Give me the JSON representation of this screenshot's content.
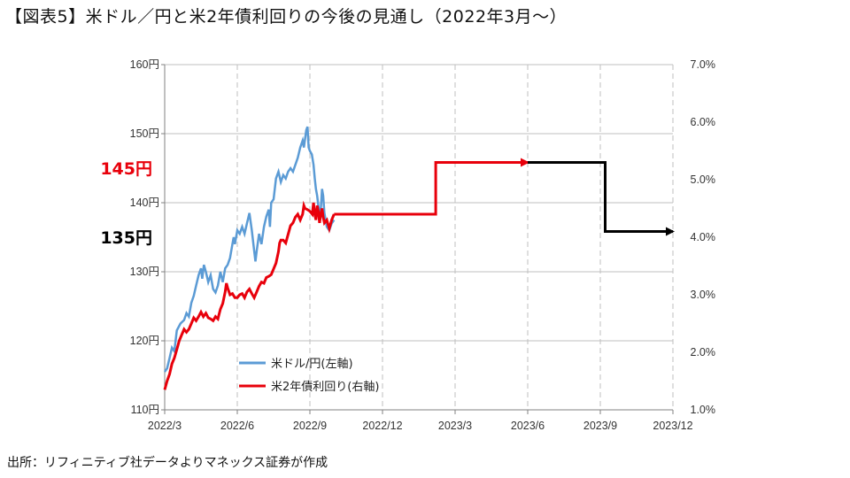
{
  "title": "【図表5】米ドル／円と米2年債利回りの今後の見通し（2022年3月～）",
  "source": "出所：リフィニティブ社データよりマネックス証券が作成",
  "colors": {
    "usdjpy": "#5b9bd5",
    "yield": "#e8000b",
    "forecast_late": "#000000",
    "grid": "#bfbfbf",
    "callout_high": "#e8000b",
    "callout_low": "#000000"
  },
  "chart_data": {
    "type": "line",
    "title": "",
    "xlabel": "",
    "x_ticks": [
      "2022/3",
      "2022/6",
      "2022/9",
      "2022/12",
      "2023/3",
      "2023/6",
      "2023/9",
      "2023/12"
    ],
    "y_left": {
      "label": "",
      "min": 110,
      "max": 160,
      "step": 10,
      "unit": "円",
      "ticks": [
        "110円",
        "120円",
        "130円",
        "140円",
        "150円",
        "160円"
      ]
    },
    "y_right": {
      "label": "",
      "min": 1.0,
      "max": 7.0,
      "step": 1.0,
      "unit": "%",
      "ticks": [
        "1.0%",
        "2.0%",
        "3.0%",
        "4.0%",
        "5.0%",
        "6.0%",
        "7.0%"
      ]
    },
    "grid": {
      "vertical": "dashed",
      "horizontal": "solid"
    },
    "legend": {
      "position": "bottom-left",
      "entries": [
        {
          "label": "米ドル/円(左軸)",
          "series": "usdjpy"
        },
        {
          "label": "米2年債利回り(右軸)",
          "series": "yield"
        }
      ]
    },
    "series": [
      {
        "name": "米ドル/円(左軸)",
        "key": "usdjpy",
        "axis": "left",
        "x_unit": "month index (0 = 2022/3)",
        "points": [
          [
            0.0,
            115.5
          ],
          [
            0.1,
            116.0
          ],
          [
            0.2,
            117.5
          ],
          [
            0.3,
            119.0
          ],
          [
            0.4,
            118.5
          ],
          [
            0.5,
            121.5
          ],
          [
            0.65,
            122.5
          ],
          [
            0.8,
            123.0
          ],
          [
            0.9,
            124.0
          ],
          [
            1.0,
            123.5
          ],
          [
            1.1,
            125.5
          ],
          [
            1.2,
            126.5
          ],
          [
            1.3,
            128.0
          ],
          [
            1.4,
            129.5
          ],
          [
            1.5,
            130.5
          ],
          [
            1.55,
            129.0
          ],
          [
            1.62,
            131.0
          ],
          [
            1.7,
            130.0
          ],
          [
            1.8,
            128.5
          ],
          [
            1.9,
            129.5
          ],
          [
            2.0,
            127.5
          ],
          [
            2.1,
            127.0
          ],
          [
            2.2,
            128.0
          ],
          [
            2.3,
            130.0
          ],
          [
            2.4,
            128.5
          ],
          [
            2.5,
            130.5
          ],
          [
            2.6,
            131.0
          ],
          [
            2.7,
            132.0
          ],
          [
            2.8,
            134.0
          ],
          [
            2.85,
            135.0
          ],
          [
            2.9,
            134.0
          ],
          [
            3.0,
            136.0
          ],
          [
            3.1,
            135.5
          ],
          [
            3.2,
            136.5
          ],
          [
            3.3,
            135.5
          ],
          [
            3.4,
            137.0
          ],
          [
            3.5,
            138.5
          ],
          [
            3.6,
            136.0
          ],
          [
            3.7,
            133.0
          ],
          [
            3.75,
            131.5
          ],
          [
            3.8,
            133.0
          ],
          [
            3.9,
            135.5
          ],
          [
            4.0,
            134.0
          ],
          [
            4.1,
            136.5
          ],
          [
            4.2,
            138.0
          ],
          [
            4.3,
            139.0
          ],
          [
            4.35,
            136.5
          ],
          [
            4.4,
            140.0
          ],
          [
            4.5,
            140.5
          ],
          [
            4.6,
            143.5
          ],
          [
            4.7,
            144.5
          ],
          [
            4.8,
            143.0
          ],
          [
            4.9,
            144.0
          ],
          [
            5.0,
            143.5
          ],
          [
            5.1,
            144.5
          ],
          [
            5.2,
            145.0
          ],
          [
            5.3,
            144.5
          ],
          [
            5.4,
            145.5
          ],
          [
            5.5,
            146.5
          ],
          [
            5.6,
            148.0
          ],
          [
            5.7,
            149.0
          ],
          [
            5.75,
            148.0
          ],
          [
            5.85,
            150.5
          ],
          [
            5.9,
            151.0
          ],
          [
            5.95,
            148.0
          ],
          [
            6.0,
            147.5
          ],
          [
            6.08,
            147.0
          ],
          [
            6.15,
            145.5
          ],
          [
            6.2,
            143.5
          ],
          [
            6.25,
            142.0
          ],
          [
            6.3,
            141.0
          ],
          [
            6.35,
            139.5
          ],
          [
            6.4,
            138.5
          ],
          [
            6.45,
            139.0
          ],
          [
            6.5,
            142.0
          ],
          [
            6.55,
            141.0
          ],
          [
            6.6,
            138.5
          ],
          [
            6.7,
            136.5
          ],
          [
            6.8,
            136.0
          ],
          [
            6.9,
            137.0
          ],
          [
            7.0,
            137.5
          ]
        ]
      },
      {
        "name": "米2年債利回り(右軸)",
        "key": "yield",
        "axis": "right",
        "x_unit": "month index (0 = 2022/3)",
        "points": [
          [
            0.0,
            1.35
          ],
          [
            0.1,
            1.5
          ],
          [
            0.2,
            1.62
          ],
          [
            0.3,
            1.8
          ],
          [
            0.4,
            1.9
          ],
          [
            0.5,
            2.05
          ],
          [
            0.6,
            2.2
          ],
          [
            0.7,
            2.3
          ],
          [
            0.8,
            2.4
          ],
          [
            0.9,
            2.35
          ],
          [
            1.0,
            2.4
          ],
          [
            1.1,
            2.5
          ],
          [
            1.2,
            2.6
          ],
          [
            1.3,
            2.55
          ],
          [
            1.4,
            2.62
          ],
          [
            1.5,
            2.7
          ],
          [
            1.6,
            2.62
          ],
          [
            1.7,
            2.68
          ],
          [
            1.8,
            2.6
          ],
          [
            1.9,
            2.58
          ],
          [
            2.0,
            2.55
          ],
          [
            2.1,
            2.62
          ],
          [
            2.2,
            2.58
          ],
          [
            2.3,
            2.75
          ],
          [
            2.4,
            2.85
          ],
          [
            2.5,
            3.05
          ],
          [
            2.55,
            3.2
          ],
          [
            2.6,
            3.12
          ],
          [
            2.7,
            3.0
          ],
          [
            2.8,
            3.02
          ],
          [
            2.9,
            2.95
          ],
          [
            3.0,
            2.95
          ],
          [
            3.1,
            3.0
          ],
          [
            3.2,
            3.02
          ],
          [
            3.3,
            2.95
          ],
          [
            3.4,
            3.05
          ],
          [
            3.5,
            3.1
          ],
          [
            3.6,
            3.02
          ],
          [
            3.7,
            2.95
          ],
          [
            3.8,
            3.05
          ],
          [
            3.9,
            3.15
          ],
          [
            4.0,
            3.22
          ],
          [
            4.1,
            3.2
          ],
          [
            4.2,
            3.3
          ],
          [
            4.3,
            3.32
          ],
          [
            4.4,
            3.35
          ],
          [
            4.5,
            3.45
          ],
          [
            4.6,
            3.55
          ],
          [
            4.7,
            3.75
          ],
          [
            4.75,
            3.9
          ],
          [
            4.8,
            3.95
          ],
          [
            4.9,
            3.95
          ],
          [
            5.0,
            3.9
          ],
          [
            5.1,
            4.05
          ],
          [
            5.2,
            4.2
          ],
          [
            5.3,
            4.25
          ],
          [
            5.4,
            4.35
          ],
          [
            5.5,
            4.4
          ],
          [
            5.6,
            4.3
          ],
          [
            5.7,
            4.4
          ],
          [
            5.75,
            4.55
          ],
          [
            5.8,
            4.5
          ],
          [
            5.9,
            4.48
          ],
          [
            6.0,
            4.45
          ],
          [
            6.1,
            4.4
          ],
          [
            6.15,
            4.6
          ],
          [
            6.2,
            4.4
          ],
          [
            6.25,
            4.3
          ],
          [
            6.3,
            4.55
          ],
          [
            6.35,
            4.45
          ],
          [
            6.4,
            4.25
          ],
          [
            6.45,
            4.4
          ],
          [
            6.5,
            4.5
          ],
          [
            6.55,
            4.35
          ],
          [
            6.6,
            4.25
          ],
          [
            6.7,
            4.3
          ],
          [
            6.8,
            4.15
          ],
          [
            6.9,
            4.3
          ],
          [
            7.0,
            4.4
          ]
        ]
      },
      {
        "name": "",
        "key": "forecast_near",
        "axis": "right",
        "color_key": "yield",
        "points": [
          [
            7.0,
            4.4
          ],
          [
            11.2,
            4.4
          ],
          [
            11.2,
            5.3
          ],
          [
            15.0,
            5.3
          ]
        ],
        "arrow_end": true
      },
      {
        "name": "",
        "key": "forecast_late",
        "axis": "right",
        "color_key": "forecast_late",
        "points": [
          [
            15.0,
            5.3
          ],
          [
            18.2,
            5.3
          ],
          [
            18.2,
            4.1
          ],
          [
            21.0,
            4.1
          ]
        ],
        "arrow_end": true
      }
    ],
    "callouts": [
      {
        "text": "145円",
        "value": 145,
        "axis": "left",
        "color_key": "callout_high"
      },
      {
        "text": "135円",
        "value": 135,
        "axis": "left",
        "color_key": "callout_low"
      }
    ]
  }
}
